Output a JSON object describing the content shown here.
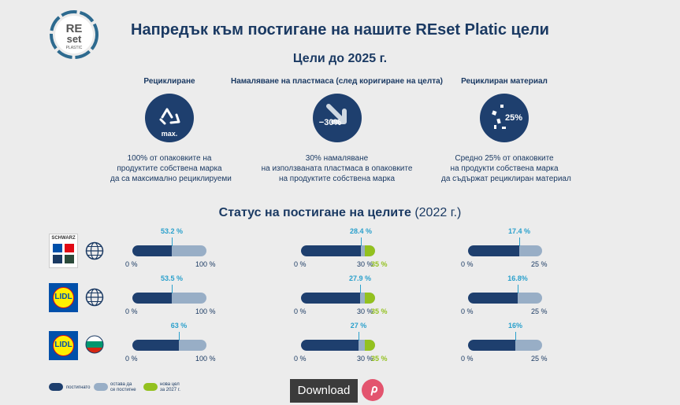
{
  "logo": {
    "line1": "RE",
    "line2": "set",
    "line3": "PLASTIC"
  },
  "title": "Напредък към постигане на нашите REset Platic цели",
  "goals_title": "Цели до 2025 г.",
  "goals": [
    {
      "label": "Рециклиране",
      "icon": "recycle-icon",
      "icon_text": "max.",
      "desc": [
        "100% от опаковките на",
        "продуктите собствена марка",
        "да са максимално рециклируеми"
      ]
    },
    {
      "label": "Намаляване на пластмаса (след коригиране на целта)",
      "icon": "down-arrow-icon",
      "icon_text": "−30%",
      "desc": [
        "30% намаляване",
        "на използваната пластмаса в опаковките",
        "на продуктите собствена марка"
      ]
    },
    {
      "label": "Рециклиран материал",
      "icon": "recycled-material-icon",
      "icon_text": "25%",
      "desc": [
        "Средно 25% от опаковките",
        "на продукти собствена марка",
        "да съдържат рециклиран материал"
      ]
    }
  ],
  "status": {
    "title_bold": "Статус на постигане на целите",
    "title_rest": " (2022 г.)"
  },
  "rows": [
    {
      "brand": "schwarz-group-logo",
      "brand_text": "SCHWARZ",
      "scope": "globe-icon",
      "bars": [
        {
          "value": 53.2,
          "label": "53.2 %",
          "min": "0 %",
          "max": "100 %"
        },
        {
          "value": 28.4,
          "label": "28.4 %",
          "min": "0 %",
          "target": "30 %",
          "new_target": "35 %",
          "scale_max": 35
        },
        {
          "value": 17.4,
          "label": "17.4 %",
          "min": "0 %",
          "max": "25 %",
          "scale_max": 25
        }
      ]
    },
    {
      "brand": "lidl-logo",
      "brand_text": "LIDL",
      "scope": "globe-icon",
      "bars": [
        {
          "value": 53.5,
          "label": "53.5 %",
          "min": "0 %",
          "max": "100 %"
        },
        {
          "value": 27.9,
          "label": "27.9 %",
          "min": "0 %",
          "target": "30 %",
          "new_target": "35 %",
          "scale_max": 35
        },
        {
          "value": 16.8,
          "label": "16.8%",
          "min": "0 %",
          "max": "25 %",
          "scale_max": 25
        }
      ]
    },
    {
      "brand": "lidl-logo",
      "brand_text": "LIDL",
      "scope": "bulgaria-flag-icon",
      "bars": [
        {
          "value": 63,
          "label": "63 %",
          "min": "0 %",
          "max": "100 %"
        },
        {
          "value": 27,
          "label": "27 %",
          "min": "0 %",
          "target": "30 %",
          "new_target": "35 %",
          "scale_max": 35
        },
        {
          "value": 16,
          "label": "16%",
          "min": "0 %",
          "max": "25 %",
          "scale_max": 25
        }
      ]
    }
  ],
  "legend": [
    {
      "label": [
        "постигнато"
      ],
      "color": "#1e3f6e"
    },
    {
      "label": [
        "остава да",
        "се постигне"
      ],
      "color": "#98aec6"
    },
    {
      "label": [
        "нова цел",
        "за 2027 г."
      ],
      "color": "#93c11f"
    }
  ],
  "download_label": "Download",
  "pinterest_icon": "pinterest-icon",
  "colors": {
    "navy": "#1e3f6e",
    "light": "#98aec6",
    "green": "#93c11f",
    "accent": "#2aa0cc"
  }
}
